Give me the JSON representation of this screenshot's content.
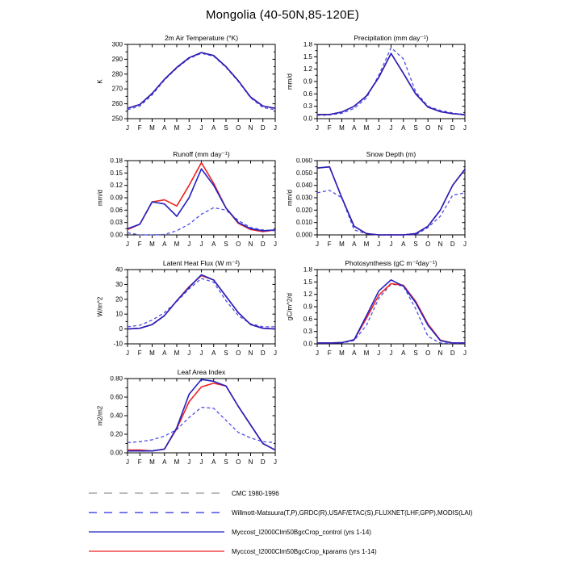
{
  "title": "Mongolia (40-50N,85-120E)",
  "months": [
    "J",
    "F",
    "M",
    "A",
    "M",
    "J",
    "J",
    "A",
    "S",
    "O",
    "N",
    "D",
    "J"
  ],
  "legend": [
    {
      "label": "CMC 1980-1996",
      "color": "#a3a3a3",
      "style": "dashed"
    },
    {
      "label": "Willmott-Matsuura(T,P),GRDC(R),USAF/ETAC(S),FLUXNET(LHF,GPP),MODIS(LAI)",
      "color": "#4d4de8",
      "style": "dashed"
    },
    {
      "label": "Myccost_I2000Clm50BgcCrop_control (yrs 1-14)",
      "color": "#2222c0",
      "style": "solid"
    },
    {
      "label": "Myccost_I2000Clm50BgcCrop_kparams (yrs 1-14)",
      "color": "#ee2222",
      "style": "solid"
    }
  ],
  "chart_data": [
    {
      "type": "line",
      "title": "2m Air Temperature (°K)",
      "ylabel": "K",
      "ylim": [
        250,
        300
      ],
      "yticks": [
        "250",
        "260",
        "270",
        "280",
        "290",
        "300"
      ],
      "series": [
        {
          "name": "observations",
          "color": "#4d4de8",
          "style": "dashed",
          "values": [
            256.0,
            258.5,
            266.0,
            276.0,
            284.0,
            290.5,
            294.0,
            292.0,
            284.5,
            275.0,
            264.0,
            257.5,
            256.0
          ]
        },
        {
          "name": "kparams",
          "color": "#ee2222",
          "style": "solid",
          "values": [
            257.0,
            259.5,
            267.0,
            276.5,
            284.5,
            291.0,
            294.5,
            292.5,
            285.0,
            275.5,
            264.5,
            258.5,
            257.0
          ]
        },
        {
          "name": "control",
          "color": "#2222c0",
          "style": "solid",
          "values": [
            257.0,
            259.5,
            267.0,
            276.5,
            284.5,
            291.0,
            294.5,
            292.5,
            285.0,
            275.5,
            264.5,
            258.5,
            257.0
          ]
        }
      ]
    },
    {
      "type": "line",
      "title": "Precipitation (mm day⁻¹)",
      "ylabel": "mm/d",
      "ylim": [
        0,
        1.8
      ],
      "yticks": [
        "0.0",
        "0.3",
        "0.6",
        "0.9",
        "1.2",
        "1.5",
        "1.8"
      ],
      "series": [
        {
          "name": "observations",
          "color": "#4d4de8",
          "style": "dashed",
          "values": [
            0.08,
            0.09,
            0.13,
            0.25,
            0.5,
            1.05,
            1.72,
            1.45,
            0.65,
            0.3,
            0.2,
            0.14,
            0.08
          ]
        },
        {
          "name": "kparams",
          "color": "#ee2222",
          "style": "solid",
          "values": [
            0.1,
            0.1,
            0.16,
            0.3,
            0.55,
            1.0,
            1.58,
            1.1,
            0.6,
            0.28,
            0.17,
            0.12,
            0.1
          ]
        },
        {
          "name": "control",
          "color": "#2222c0",
          "style": "solid",
          "values": [
            0.1,
            0.1,
            0.16,
            0.3,
            0.55,
            1.0,
            1.58,
            1.1,
            0.6,
            0.28,
            0.17,
            0.12,
            0.1
          ]
        }
      ]
    },
    {
      "type": "line",
      "title": "Runoff (mm day⁻¹)",
      "ylabel": "mm/d",
      "ylim": [
        0,
        0.18
      ],
      "yticks": [
        "0.00",
        "0.03",
        "0.06",
        "0.09",
        "0.12",
        "0.15",
        "0.18"
      ],
      "series": [
        {
          "name": "observations",
          "color": "#4d4de8",
          "style": "dashed",
          "values": [
            0.005,
            0.0,
            0.0,
            0.001,
            0.01,
            0.026,
            0.05,
            0.066,
            0.06,
            0.035,
            0.018,
            0.012,
            0.01
          ]
        },
        {
          "name": "kparams",
          "color": "#ee2222",
          "style": "solid",
          "values": [
            0.013,
            0.026,
            0.08,
            0.085,
            0.07,
            0.12,
            0.175,
            0.125,
            0.065,
            0.028,
            0.013,
            0.008,
            0.012
          ]
        },
        {
          "name": "control",
          "color": "#2222c0",
          "style": "solid",
          "values": [
            0.015,
            0.026,
            0.08,
            0.075,
            0.045,
            0.09,
            0.16,
            0.12,
            0.065,
            0.03,
            0.015,
            0.01,
            0.012
          ]
        }
      ]
    },
    {
      "type": "line",
      "title": "Snow Depth (m)",
      "ylabel": "mm/d",
      "ylim": [
        0,
        0.06
      ],
      "yticks": [
        "0.000",
        "0.010",
        "0.020",
        "0.030",
        "0.040",
        "0.050",
        "0.060"
      ],
      "series": [
        {
          "name": "observations",
          "color": "#4d4de8",
          "style": "dashed",
          "values": [
            0.034,
            0.036,
            0.03,
            0.004,
            0.001,
            0.0,
            0.0,
            0.0,
            0.0,
            0.006,
            0.015,
            0.032,
            0.034
          ]
        },
        {
          "name": "kparams",
          "color": "#ee2222",
          "style": "solid",
          "values": [
            0.054,
            0.055,
            0.03,
            0.007,
            0.001,
            0.0,
            0.0,
            0.0,
            0.001,
            0.007,
            0.02,
            0.04,
            0.053
          ]
        },
        {
          "name": "control",
          "color": "#2222c0",
          "style": "solid",
          "values": [
            0.054,
            0.055,
            0.03,
            0.007,
            0.001,
            0.0,
            0.0,
            0.0,
            0.001,
            0.007,
            0.02,
            0.04,
            0.053
          ]
        }
      ]
    },
    {
      "type": "line",
      "title": "Latent Heat Flux (W m⁻²)",
      "ylabel": "W/m^2",
      "ylim": [
        -10,
        40
      ],
      "yticks": [
        "-10",
        "0",
        "10",
        "20",
        "30",
        "40"
      ],
      "series": [
        {
          "name": "observations",
          "color": "#4d4de8",
          "style": "dashed",
          "values": [
            1.5,
            2.5,
            6.0,
            11.0,
            18.5,
            27.0,
            34.0,
            31.5,
            19.0,
            9.0,
            3.5,
            1.5,
            1.5
          ]
        },
        {
          "name": "kparams",
          "color": "#ee2222",
          "style": "solid",
          "values": [
            0.0,
            0.5,
            3.0,
            9.0,
            19.0,
            28.5,
            36.0,
            33.0,
            22.0,
            11.0,
            3.0,
            0.5,
            0.0
          ]
        },
        {
          "name": "control",
          "color": "#2222c0",
          "style": "solid",
          "values": [
            0.0,
            0.5,
            3.0,
            9.0,
            19.0,
            28.0,
            36.5,
            33.0,
            22.0,
            11.0,
            3.0,
            0.5,
            0.0
          ]
        }
      ]
    },
    {
      "type": "line",
      "title": "Photosynthesis (gC m⁻²day⁻¹)",
      "ylabel": "gC/m^2/d",
      "ylim": [
        0,
        1.8
      ],
      "yticks": [
        "0.0",
        "0.3",
        "0.6",
        "0.9",
        "1.2",
        "1.5",
        "1.8"
      ],
      "series": [
        {
          "name": "observations",
          "color": "#4d4de8",
          "style": "dashed",
          "values": [
            0.02,
            0.02,
            0.02,
            0.08,
            0.45,
            1.1,
            1.45,
            1.4,
            0.85,
            0.18,
            0.02,
            0.01,
            0.02
          ]
        },
        {
          "name": "kparams",
          "color": "#ee2222",
          "style": "solid",
          "values": [
            0.02,
            0.02,
            0.03,
            0.1,
            0.62,
            1.18,
            1.46,
            1.42,
            1.03,
            0.48,
            0.09,
            0.02,
            0.02
          ]
        },
        {
          "name": "control",
          "color": "#2222c0",
          "style": "solid",
          "values": [
            0.02,
            0.02,
            0.03,
            0.1,
            0.68,
            1.28,
            1.55,
            1.4,
            1.0,
            0.45,
            0.08,
            0.02,
            0.02
          ]
        }
      ]
    },
    {
      "type": "line",
      "title": "Leaf Area Index",
      "ylabel": "m2/m2",
      "ylim": [
        0,
        0.8
      ],
      "yticks": [
        "0.00",
        "0.20",
        "0.40",
        "0.60",
        "0.80"
      ],
      "series": [
        {
          "name": "observations",
          "color": "#4d4de8",
          "style": "dashed",
          "values": [
            0.11,
            0.12,
            0.14,
            0.18,
            0.25,
            0.38,
            0.49,
            0.48,
            0.35,
            0.22,
            0.16,
            0.12,
            0.11
          ]
        },
        {
          "name": "kparams",
          "color": "#ee2222",
          "style": "solid",
          "values": [
            0.03,
            0.03,
            0.02,
            0.04,
            0.26,
            0.55,
            0.71,
            0.75,
            0.72,
            0.5,
            0.3,
            0.1,
            0.03
          ]
        },
        {
          "name": "control",
          "color": "#2222c0",
          "style": "solid",
          "values": [
            0.02,
            0.02,
            0.02,
            0.04,
            0.27,
            0.63,
            0.79,
            0.77,
            0.72,
            0.5,
            0.3,
            0.1,
            0.03
          ]
        }
      ]
    }
  ]
}
